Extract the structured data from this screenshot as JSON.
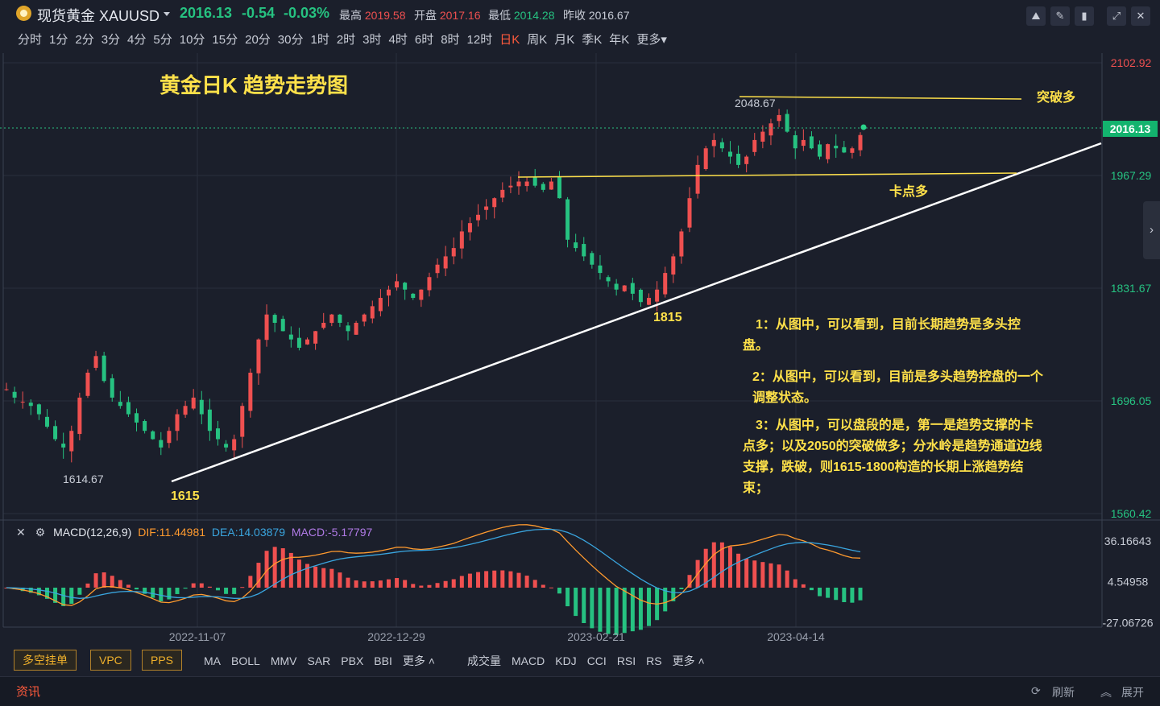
{
  "header": {
    "symbol": "现货黄金 XAUUSD",
    "price": "2016.13",
    "change": "-0.54",
    "change_pct": "-0.03%",
    "high_label": "最高",
    "high": "2019.58",
    "open_label": "开盘",
    "open": "2017.16",
    "low_label": "最低",
    "low": "2014.28",
    "prev_label": "昨收",
    "prev": "2016.67"
  },
  "periods": [
    "分时",
    "1分",
    "2分",
    "3分",
    "4分",
    "5分",
    "10分",
    "15分",
    "20分",
    "30分",
    "1时",
    "2时",
    "3时",
    "4时",
    "6时",
    "8时",
    "12时",
    "日K",
    "周K",
    "月K",
    "季K",
    "年K",
    "更多"
  ],
  "active_period": "日K",
  "chart": {
    "title": "黄金日K 趋势走势图",
    "price_axis": [
      "2102.92",
      "1967.29",
      "1831.67",
      "1696.05",
      "1560.42"
    ],
    "current_price_tag": "2016.13",
    "high_marker": "2048.67",
    "low_marker": "1614.67",
    "labels": {
      "breakout": "突破多",
      "card_point": "卡点多",
      "low1": "1615",
      "low2": "1815"
    },
    "notes": [
      "1：从图中，可以看到，目前长期趋势是多头控盘。",
      "2：从图中，可以看到，目前是多头趋势控盘的一个调整状态。",
      "3：从图中，可以盘段的是，第一是趋势支撑的卡点多；以及2050的突破做多；分水岭是趋势通道边线支撑，跌破，则1615-1800构造的长期上涨趋势结束；"
    ]
  },
  "macd": {
    "name": "MACD(12,26,9)",
    "dif": "DIF:11.44981",
    "dea": "DEA:14.03879",
    "macd": "MACD:-5.17797",
    "axis": [
      "36.16643",
      "4.54958",
      "-27.06726"
    ],
    "dates": [
      "2022-11-07",
      "2022-12-29",
      "2023-02-21",
      "2023-04-14"
    ]
  },
  "bottom": {
    "tags": [
      "多空挂单",
      "VPC",
      "PPS"
    ],
    "overlays": [
      "MA",
      "BOLL",
      "MMV",
      "SAR",
      "PBX",
      "BBI",
      "更多"
    ],
    "indicators": [
      "成交量",
      "MACD",
      "KDJ",
      "CCI",
      "RSI",
      "RS",
      "更多"
    ]
  },
  "news": {
    "title": "资讯",
    "refresh": "刷新",
    "expand": "展开"
  },
  "colors": {
    "up": "#ef5050",
    "down": "#26c281",
    "accent": "#ffe14a",
    "dif": "#ff9a2e",
    "dea": "#3aa6e0",
    "macd_label": "#b07ae6"
  },
  "chart_data": {
    "type": "candlestick",
    "title": "黄金日K 趋势走势图",
    "ylim": [
      1560.42,
      2102.92
    ],
    "x_ticks": [
      "2022-11-07",
      "2022-12-29",
      "2023-02-21",
      "2023-04-14"
    ],
    "key_levels": {
      "low_start": 1614.67,
      "mid_low": 1815,
      "resistance": 2048.67,
      "support": 1967.29,
      "last": 2016.13
    },
    "close_path": [
      1710,
      1700,
      1695,
      1690,
      1680,
      1665,
      1650,
      1640,
      1660,
      1700,
      1730,
      1750,
      1720,
      1700,
      1690,
      1680,
      1670,
      1660,
      1650,
      1640,
      1660,
      1680,
      1690,
      1700,
      1680,
      1660,
      1650,
      1640,
      1650,
      1690,
      1730,
      1770,
      1800,
      1790,
      1780,
      1770,
      1760,
      1770,
      1780,
      1790,
      1800,
      1790,
      1780,
      1790,
      1800,
      1810,
      1820,
      1830,
      1840,
      1830,
      1820,
      1830,
      1845,
      1860,
      1870,
      1880,
      1900,
      1910,
      1920,
      1930,
      1940,
      1950,
      1955,
      1960,
      1960,
      1955,
      1950,
      1960,
      1940,
      1890,
      1880,
      1870,
      1860,
      1850,
      1840,
      1830,
      1835,
      1825,
      1815,
      1820,
      1830,
      1850,
      1870,
      1900,
      1940,
      1980,
      2000,
      2010,
      2000,
      1990,
      1980,
      1990,
      2010,
      2020,
      2030,
      2040,
      2020,
      2000,
      2010,
      2000,
      1990,
      2005,
      2000,
      1995,
      2000,
      2016
    ]
  }
}
